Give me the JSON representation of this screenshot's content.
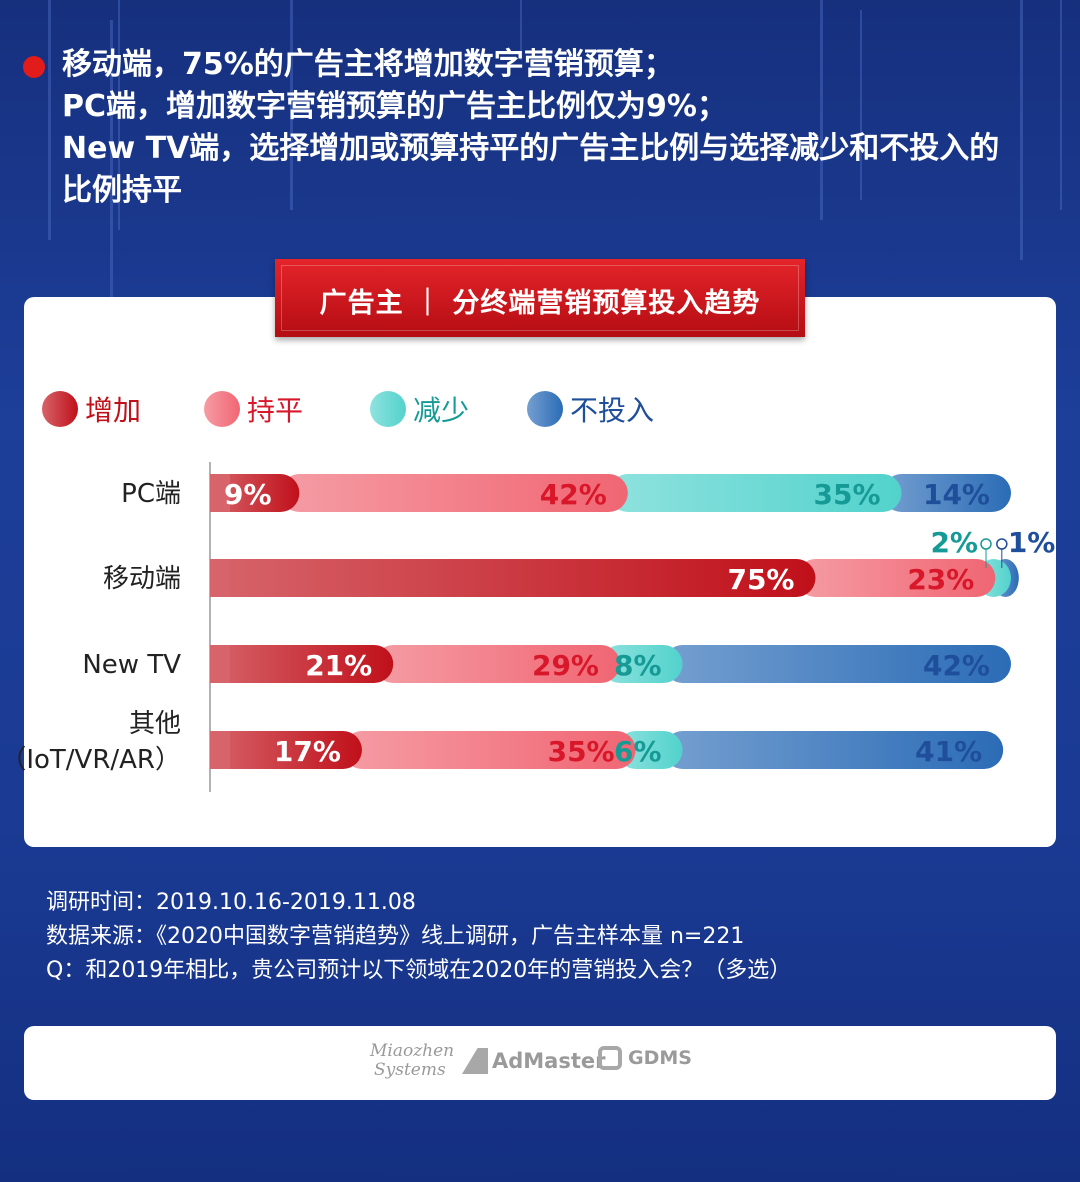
{
  "headline": {
    "lines": [
      "移动端，75%的广告主将增加数字营销预算；",
      "PC端，增加数字营销预算的广告主比例仅为9%；",
      "New TV端，选择增加或预算持平的广告主比例与选择减少和不投入的",
      "比例持平"
    ]
  },
  "banner": {
    "title": "广告主 ｜ 分终端营销预算投入趋势"
  },
  "chart_data": {
    "type": "bar",
    "orientation": "horizontal",
    "stacked": true,
    "title": "广告主 ｜ 分终端营销预算投入趋势",
    "legend_position": "top-left",
    "categories": [
      "PC端",
      "移动端",
      "New TV",
      "其他（IoT/VR/AR）"
    ],
    "category_label_lines": [
      [
        "PC端"
      ],
      [
        "移动端"
      ],
      [
        "New TV"
      ],
      [
        "其他",
        "（IoT/VR/AR）"
      ]
    ],
    "series": [
      {
        "name": "增加",
        "values": [
          9,
          75,
          21,
          17
        ],
        "color": "#c0101a"
      },
      {
        "name": "持平",
        "values": [
          42,
          23,
          29,
          35
        ],
        "color": "#f06673"
      },
      {
        "name": "减少",
        "values": [
          35,
          2,
          8,
          6
        ],
        "color": "#52d2cc"
      },
      {
        "name": "不投入",
        "values": [
          14,
          1,
          42,
          41
        ],
        "color": "#2b6cb6"
      }
    ],
    "label_colors": [
      "#ffffff",
      "#d8182a",
      "#169a96",
      "#1f4e9a"
    ],
    "xlim": [
      0,
      100
    ],
    "unit": "%"
  },
  "notes": {
    "survey_time": "调研时间：2019.10.16-2019.11.08",
    "source": "数据来源：《2020中国数字营销趋势》线上调研，广告主样本量 n=221",
    "question": "Q：和2019年相比，贵公司预计以下领域在2020年的营销投入会？（多选）"
  },
  "logos": {
    "miaozhen_line1": "Miaozhen",
    "miaozhen_line2": "Systems",
    "admaster": "AdMaster",
    "gdms": "GDMS"
  },
  "colors": {
    "background": "#1a3a93",
    "accent_red": "#e21b1b",
    "card": "#ffffff"
  }
}
